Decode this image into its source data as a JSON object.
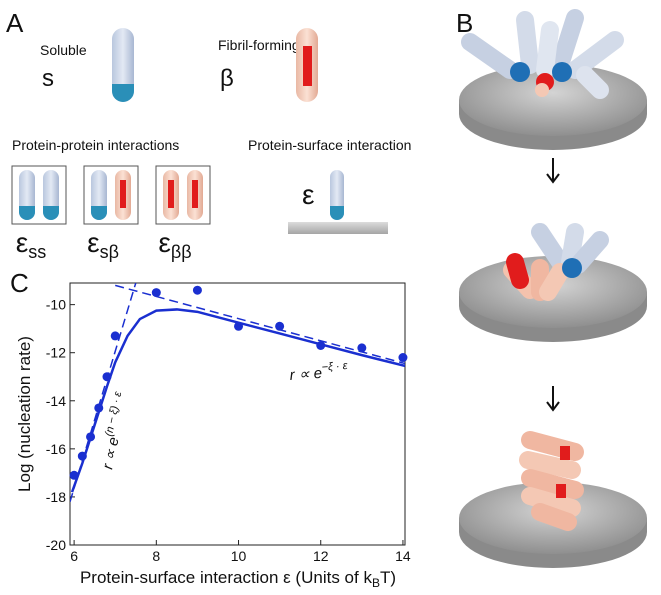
{
  "panel_a": {
    "label": "A",
    "soluble": {
      "name": "Soluble",
      "symbol": "s"
    },
    "fibril": {
      "name": "Fibril-forming",
      "symbol": "β"
    },
    "pp_title": "Protein-protein interactions",
    "ps_title": "Protein-surface interaction",
    "pp_symbols": [
      {
        "base": "ε",
        "sub": "ss"
      },
      {
        "base": "ε",
        "sub": "sβ"
      },
      {
        "base": "ε",
        "sub": "ββ"
      }
    ],
    "ps_symbol": "ε"
  },
  "panel_b": {
    "label": "B"
  },
  "chart_data": {
    "type": "scatter",
    "panel_label": "C",
    "ylabel": "Log (nucleation rate)",
    "xlabel": {
      "text": "Protein-surface interaction ε (Units of k",
      "sub": "B",
      "suffix": "T)"
    },
    "xlim": [
      5.9,
      14.05
    ],
    "ylim": [
      -20,
      -9.1
    ],
    "xticks": [
      6,
      8,
      10,
      12,
      14
    ],
    "yticks": [
      -20,
      -18,
      -16,
      -14,
      -12,
      -10
    ],
    "color": "#1a2fd0",
    "x": [
      6.0,
      6.2,
      6.4,
      6.6,
      6.8,
      7.0,
      8,
      9,
      10,
      11,
      12,
      13,
      14
    ],
    "values": [
      -17.1,
      -16.3,
      -15.5,
      -14.3,
      -13.0,
      -11.3,
      -9.5,
      -9.4,
      -10.9,
      -10.9,
      -11.7,
      -11.8,
      -12.2
    ],
    "fit": {
      "x": [
        5.95,
        6.2,
        6.5,
        6.8,
        7.0,
        7.3,
        7.6,
        8.0,
        8.5,
        9,
        10,
        11,
        12,
        13,
        14.05
      ],
      "values": [
        -17.8,
        -16.6,
        -15.0,
        -13.4,
        -12.4,
        -11.3,
        -10.6,
        -10.25,
        -10.2,
        -10.3,
        -10.75,
        -11.2,
        -11.65,
        -12.1,
        -12.55
      ]
    },
    "asymptotes": [
      {
        "x": [
          5.9,
          7.5
        ],
        "values": [
          -18.2,
          -9.1
        ]
      },
      {
        "x": [
          7.0,
          14.05
        ],
        "values": [
          -9.2,
          -12.45
        ]
      }
    ],
    "annotations": [
      {
        "base": "r ∝ e",
        "exp": "(n − ξ) · ε"
      },
      {
        "base": "r ∝ e",
        "exp": "−ξ · ε"
      }
    ]
  }
}
